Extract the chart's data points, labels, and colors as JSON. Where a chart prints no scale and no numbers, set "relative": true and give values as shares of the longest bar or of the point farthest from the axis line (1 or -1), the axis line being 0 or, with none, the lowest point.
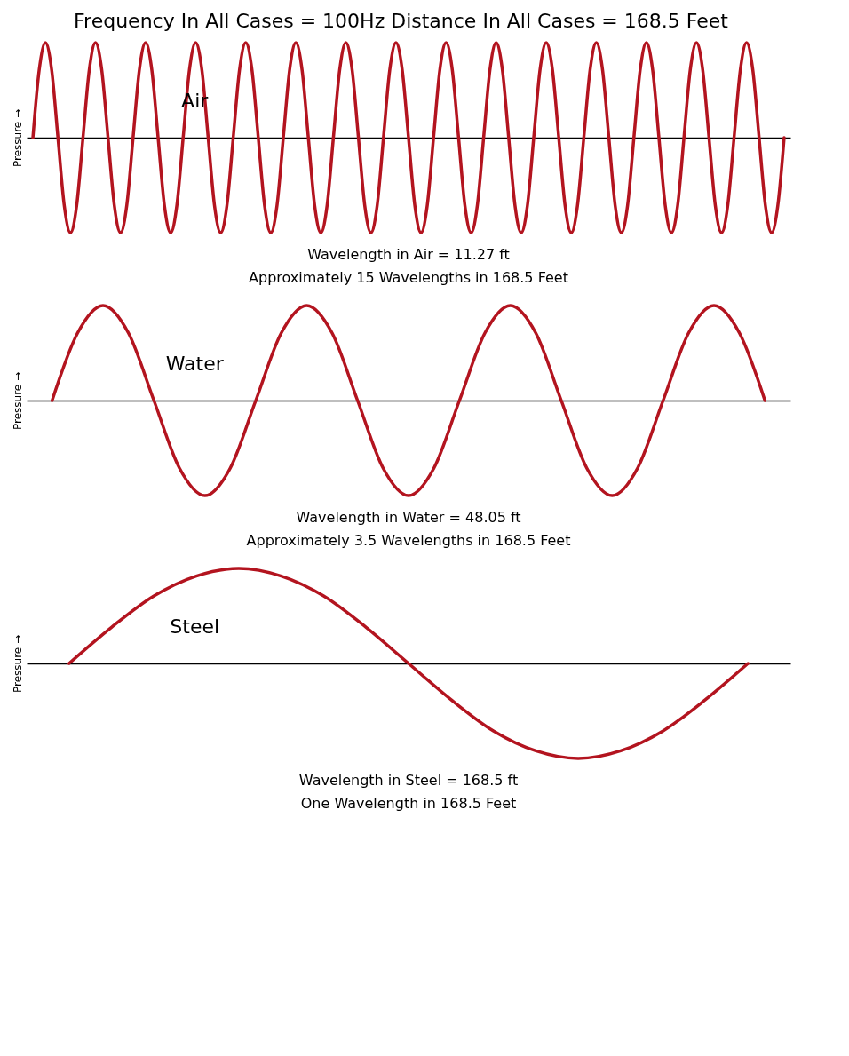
{
  "chart_data": [
    {
      "type": "line",
      "title": "Frequency In All Cases = 100Hz   Distance In All Cases = 168.5 Feet",
      "ylabel": "Pressure →",
      "relative": true,
      "color": "#b3141f",
      "annotations": [
        "Air",
        "Wavelength in Air = 11.27 ft",
        "Approximately 15 Wavelengths in 168.5 Feet"
      ],
      "categories": [
        null,
        null,
        null,
        null,
        null,
        null,
        null,
        null,
        null,
        null,
        null,
        null,
        null,
        null,
        null,
        null,
        null,
        null,
        null,
        null,
        null,
        null,
        null,
        null,
        null,
        null,
        null,
        null,
        null,
        null,
        null,
        null,
        null,
        null,
        null,
        null,
        null,
        null,
        null,
        null,
        null,
        null,
        null,
        null,
        null,
        null,
        null,
        null,
        null,
        null,
        null,
        null,
        null,
        null,
        null,
        null,
        null,
        null,
        null,
        null,
        null,
        null,
        null,
        null,
        null,
        null,
        null,
        null,
        null,
        null,
        null,
        null,
        null,
        null,
        null,
        null,
        null,
        null,
        null,
        null,
        null,
        null,
        null,
        null,
        null,
        null,
        null,
        null,
        null,
        null,
        null,
        null,
        null,
        null,
        null,
        null,
        null,
        null,
        null,
        null,
        null,
        null,
        null,
        null,
        null,
        null,
        null,
        null,
        null,
        null,
        null,
        null,
        null,
        null,
        null,
        null,
        null,
        null,
        null,
        null,
        null
      ],
      "values": [
        0,
        0.71,
        1,
        0.71,
        0,
        -0.71,
        -1,
        -0.71,
        0,
        0.71,
        1,
        0.71,
        0,
        -0.71,
        -1,
        -0.71,
        0,
        0.71,
        1,
        0.71,
        0,
        -0.71,
        -1,
        -0.71,
        0,
        0.71,
        1,
        0.71,
        0,
        -0.71,
        -1,
        -0.71,
        0,
        0.71,
        1,
        0.71,
        0,
        -0.71,
        -1,
        -0.71,
        0,
        0.71,
        1,
        0.71,
        0,
        -0.71,
        -1,
        -0.71,
        0,
        0.71,
        1,
        0.71,
        0,
        -0.71,
        -1,
        -0.71,
        0,
        0.71,
        1,
        0.71,
        0,
        -0.71,
        -1,
        -0.71,
        0,
        0.71,
        1,
        0.71,
        0,
        -0.71,
        -1,
        -0.71,
        0,
        0.71,
        1,
        0.71,
        0,
        -0.71,
        -1,
        -0.71,
        0,
        0.71,
        1,
        0.71,
        0,
        -0.71,
        -1,
        -0.71,
        0,
        0.71,
        1,
        0.71,
        0,
        -0.71,
        -1,
        -0.71,
        0,
        0.71,
        1,
        0.71,
        0,
        -0.71,
        -1,
        -0.71,
        0,
        0.71,
        1,
        0.71,
        0,
        -0.71,
        -1,
        -0.71,
        0,
        0.71,
        1,
        0.71,
        0,
        -0.71,
        -1,
        -0.71,
        0
      ]
    },
    {
      "type": "line",
      "ylabel": "Pressure →",
      "relative": true,
      "color": "#b3141f",
      "annotations": [
        "Water",
        "Wavelength in Water = 48.05 ft",
        "Approximately 3.5 Wavelengths in 168.5 Feet"
      ],
      "categories": [
        null,
        null,
        null,
        null,
        null,
        null,
        null,
        null,
        null,
        null,
        null,
        null,
        null,
        null,
        null,
        null,
        null,
        null,
        null,
        null,
        null,
        null,
        null,
        null,
        null,
        null,
        null,
        null,
        null
      ],
      "values": [
        0,
        0.71,
        1,
        0.71,
        0,
        -0.71,
        -1,
        -0.71,
        0,
        0.71,
        1,
        0.71,
        0,
        -0.71,
        -1,
        -0.71,
        0,
        0.71,
        1,
        0.71,
        0,
        -0.71,
        -1,
        -0.71,
        0,
        0.71,
        1,
        0.71,
        0
      ]
    },
    {
      "type": "line",
      "ylabel": "Pressure →",
      "relative": true,
      "color": "#b3141f",
      "annotations": [
        "Steel",
        "Wavelength in Steel = 168.5 ft",
        "One Wavelength in 168.5 Feet"
      ],
      "categories": [
        null,
        null,
        null,
        null,
        null,
        null,
        null,
        null,
        null,
        null,
        null,
        null,
        null,
        null,
        null,
        null,
        null
      ],
      "values": [
        0,
        0.38,
        0.71,
        0.92,
        1,
        0.92,
        0.71,
        0.38,
        0,
        -0.38,
        -0.71,
        -0.92,
        -1,
        -0.92,
        -0.71,
        -0.38,
        0
      ]
    }
  ]
}
